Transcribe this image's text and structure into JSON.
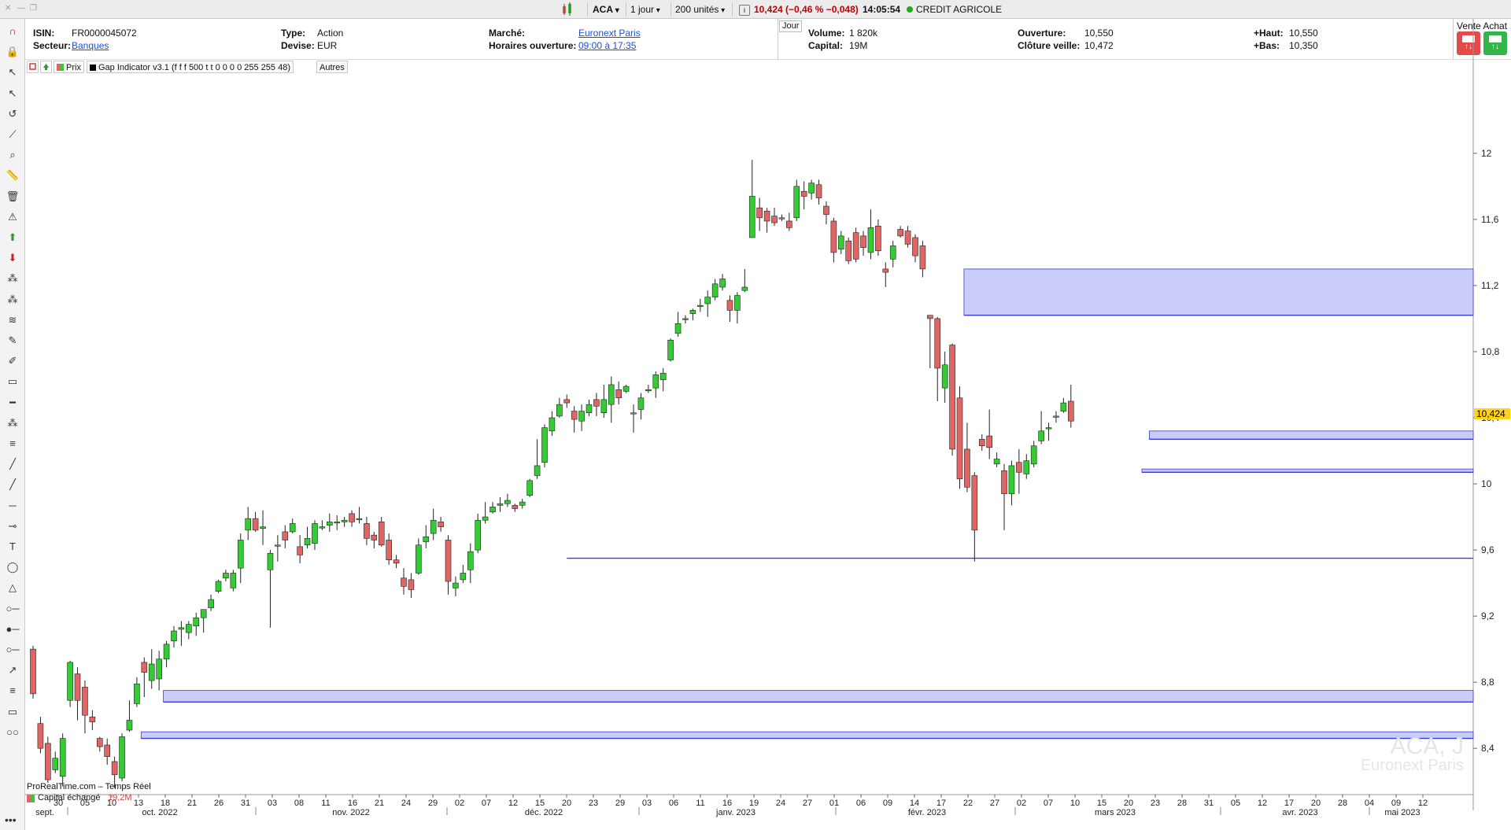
{
  "header": {
    "ticker": "ACA",
    "timeframe": "1 jour",
    "units": "200 unités",
    "info_icon": "i",
    "quote": "10,424 (−0,46 % −0,048)",
    "time": "14:05:54",
    "name": "CREDIT AGRICOLE",
    "colors": {
      "quote": "#c00000",
      "live_dot": "#22aa22"
    }
  },
  "info": {
    "isin_label": "ISIN:",
    "isin": "FR0000045072",
    "secteur_label": "Secteur:",
    "secteur": "Banques",
    "type_label": "Type:",
    "type": "Action",
    "devise_label": "Devise:",
    "devise": "EUR",
    "marche_label": "Marché:",
    "marche": "Euronext Paris",
    "horaires_label": "Horaires ouverture:",
    "horaires": "09:00 à 17:35",
    "period": "Jour",
    "volume_label": "Volume:",
    "volume": "1 820k",
    "capital_label": "Capital:",
    "capital": "19M",
    "ouverture_label": "Ouverture:",
    "ouverture": "10,550",
    "cloture_label": "Clôture veille:",
    "cloture": "10,472",
    "haut_label": "+Haut:",
    "haut": "10,550",
    "bas_label": "+Bas:",
    "bas": "10,350",
    "vente_achat": "Vente Achat",
    "colors": {
      "vente": "#e34a4a",
      "achat": "#33b54a"
    }
  },
  "legend": {
    "prix": "Prix",
    "indicator": "Gap Indicator v3.1 (f f f 500 t t 0 0 0 0 255 255 48)",
    "autres": "Autres"
  },
  "footer": {
    "source": "ProRealTime.com – Temps Réel",
    "capital_label": "Capital échangé",
    "capital_value": "19,2M",
    "watermark_ticker": "ACA, J",
    "watermark_market": "Euronext Paris"
  },
  "tools": [
    "magnet-icon",
    "lock-icon",
    "cursor-icon",
    "cursor-plus-icon",
    "undo-icon",
    "trend-icon",
    "zoom-icon",
    "ruler-icon",
    "trash-icon",
    "alert-icon",
    "buy-arrow-icon",
    "sell-arrow-icon",
    "fibonacci-icon",
    "wave-icon",
    "fib-retracement-icon",
    "pen-icon",
    "highlighter-icon",
    "rectangle-icon",
    "hline-icon",
    "pattern-icon",
    "channel-icon",
    "line-icon",
    "ray-icon",
    "horizontal-line-icon",
    "point-line-icon",
    "text-icon",
    "ellipse-icon",
    "triangle-icon",
    "segment-icon",
    "segment2-icon",
    "segment3-icon",
    "arrow-icon",
    "fib-fan-icon",
    "rect2-icon",
    "connect-icon"
  ],
  "chart_data": {
    "type": "candlestick",
    "y_ticks": [
      12,
      11.6,
      11.2,
      10.8,
      10.4,
      10,
      9.6,
      9.2,
      8.8,
      8.4
    ],
    "y_tick_labels": [
      "12",
      "11,6",
      "11,2",
      "10,8",
      "10,4",
      "10",
      "9,6",
      "9,2",
      "8,8",
      "8,4"
    ],
    "ylim": [
      8.12,
      12.48
    ],
    "last_price": 10.424,
    "last_price_label": "10,424",
    "x_day_labels": [
      "30",
      "05",
      "10",
      "13",
      "18",
      "21",
      "26",
      "31",
      "03",
      "08",
      "11",
      "16",
      "21",
      "24",
      "29",
      "02",
      "07",
      "12",
      "15",
      "20",
      "23",
      "29",
      "03",
      "06",
      "11",
      "16",
      "19",
      "24",
      "27",
      "01",
      "06",
      "09",
      "14",
      "17",
      "22",
      "27",
      "02",
      "07",
      "10",
      "15",
      "20",
      "23",
      "28",
      "31",
      "05",
      "12",
      "17",
      "20",
      "28",
      "04",
      "09",
      "12"
    ],
    "x_month_labels": [
      "sept.",
      "oct. 2022",
      "nov. 2022",
      "déc. 2022",
      "janv. 2023",
      "févr. 2023",
      "mars 2023",
      "avr. 2023",
      "mai 2023"
    ],
    "candles": [
      [
        9.0,
        8.73,
        9.02,
        8.7
      ],
      [
        8.55,
        8.4,
        8.59,
        8.37
      ],
      [
        8.43,
        8.21,
        8.47,
        8.19
      ],
      [
        8.27,
        8.34,
        8.38,
        8.25
      ],
      [
        8.23,
        8.46,
        8.49,
        8.17
      ],
      [
        8.69,
        8.92,
        8.93,
        8.65
      ],
      [
        8.85,
        8.69,
        8.89,
        8.57
      ],
      [
        8.77,
        8.6,
        8.81,
        8.49
      ],
      [
        8.59,
        8.56,
        8.63,
        8.51
      ],
      [
        8.46,
        8.41,
        8.47,
        8.38
      ],
      [
        8.42,
        8.35,
        8.46,
        8.3
      ],
      [
        8.32,
        8.24,
        8.35,
        8.16
      ],
      [
        8.22,
        8.47,
        8.49,
        8.2
      ],
      [
        8.51,
        8.57,
        8.69,
        8.5
      ],
      [
        8.67,
        8.79,
        8.83,
        8.65
      ],
      [
        8.92,
        8.86,
        8.95,
        8.71
      ],
      [
        8.81,
        8.91,
        9.0,
        8.76
      ],
      [
        8.82,
        8.94,
        8.99,
        8.75
      ],
      [
        8.94,
        9.03,
        9.05,
        8.89
      ],
      [
        9.05,
        9.11,
        9.14,
        9.01
      ],
      [
        9.12,
        9.13,
        9.17,
        9.02
      ],
      [
        9.1,
        9.15,
        9.17,
        9.06
      ],
      [
        9.14,
        9.19,
        9.22,
        9.08
      ],
      [
        9.19,
        9.24,
        9.24,
        9.1
      ],
      [
        9.25,
        9.3,
        9.33,
        9.23
      ],
      [
        9.35,
        9.41,
        9.42,
        9.34
      ],
      [
        9.43,
        9.46,
        9.48,
        9.41
      ],
      [
        9.37,
        9.46,
        9.48,
        9.35
      ],
      [
        9.49,
        9.66,
        9.7,
        9.4
      ],
      [
        9.72,
        9.79,
        9.86,
        9.66
      ],
      [
        9.79,
        9.72,
        9.83,
        9.71
      ],
      [
        9.73,
        9.74,
        9.84,
        9.63
      ],
      [
        9.48,
        9.58,
        9.6,
        9.13
      ],
      [
        9.63,
        9.63,
        9.69,
        9.53
      ],
      [
        9.71,
        9.66,
        9.75,
        9.61
      ],
      [
        9.71,
        9.76,
        9.79,
        9.7
      ],
      [
        9.62,
        9.57,
        9.69,
        9.52
      ],
      [
        9.63,
        9.67,
        9.74,
        9.61
      ],
      [
        9.64,
        9.76,
        9.78,
        9.6
      ],
      [
        9.74,
        9.74,
        9.78,
        9.72
      ],
      [
        9.75,
        9.77,
        9.82,
        9.71
      ],
      [
        9.77,
        9.77,
        9.81,
        9.72
      ],
      [
        9.77,
        9.78,
        9.8,
        9.74
      ],
      [
        9.82,
        9.77,
        9.84,
        9.74
      ],
      [
        9.79,
        9.79,
        9.86,
        9.76
      ],
      [
        9.76,
        9.67,
        9.8,
        9.63
      ],
      [
        9.69,
        9.66,
        9.71,
        9.61
      ],
      [
        9.77,
        9.63,
        9.8,
        9.62
      ],
      [
        9.66,
        9.54,
        9.7,
        9.51
      ],
      [
        9.54,
        9.52,
        9.57,
        9.49
      ],
      [
        9.43,
        9.38,
        9.49,
        9.33
      ],
      [
        9.42,
        9.36,
        9.46,
        9.31
      ],
      [
        9.46,
        9.63,
        9.67,
        9.45
      ],
      [
        9.65,
        9.68,
        9.75,
        9.61
      ],
      [
        9.7,
        9.78,
        9.85,
        9.66
      ],
      [
        9.77,
        9.74,
        9.8,
        9.71
      ],
      [
        9.66,
        9.41,
        9.69,
        9.33
      ],
      [
        9.37,
        9.4,
        9.44,
        9.32
      ],
      [
        9.42,
        9.46,
        9.51,
        9.4
      ],
      [
        9.48,
        9.59,
        9.64,
        9.4
      ],
      [
        9.6,
        9.78,
        9.82,
        9.58
      ],
      [
        9.78,
        9.8,
        9.89,
        9.76
      ],
      [
        9.83,
        9.86,
        9.89,
        9.82
      ],
      [
        9.87,
        9.88,
        9.92,
        9.83
      ],
      [
        9.88,
        9.9,
        9.94,
        9.86
      ],
      [
        9.87,
        9.85,
        9.88,
        9.83
      ],
      [
        9.87,
        9.89,
        9.91,
        9.85
      ],
      [
        9.93,
        10.02,
        10.03,
        9.92
      ],
      [
        10.05,
        10.11,
        10.27,
        10.03
      ],
      [
        10.13,
        10.34,
        10.36,
        10.1
      ],
      [
        10.32,
        10.4,
        10.44,
        10.29
      ],
      [
        10.41,
        10.48,
        10.52,
        10.4
      ],
      [
        10.51,
        10.49,
        10.54,
        10.46
      ],
      [
        10.44,
        10.39,
        10.47,
        10.31
      ],
      [
        10.38,
        10.44,
        10.48,
        10.32
      ],
      [
        10.43,
        10.48,
        10.51,
        10.41
      ],
      [
        10.51,
        10.47,
        10.55,
        10.41
      ],
      [
        10.43,
        10.51,
        10.6,
        10.4
      ],
      [
        10.48,
        10.6,
        10.65,
        10.37
      ],
      [
        10.57,
        10.52,
        10.62,
        10.48
      ],
      [
        10.56,
        10.59,
        10.6,
        10.55
      ],
      [
        10.43,
        10.43,
        10.48,
        10.31
      ],
      [
        10.45,
        10.52,
        10.55,
        10.39
      ],
      [
        10.57,
        10.57,
        10.6,
        10.55
      ],
      [
        10.58,
        10.66,
        10.68,
        10.52
      ],
      [
        10.63,
        10.67,
        10.7,
        10.56
      ],
      [
        10.75,
        10.87,
        10.88,
        10.74
      ],
      [
        10.91,
        10.97,
        11.04,
        10.89
      ],
      [
        11.0,
        11.0,
        11.02,
        10.97
      ],
      [
        11.03,
        11.05,
        11.06,
        10.99
      ],
      [
        11.08,
        11.08,
        11.12,
        11.04
      ],
      [
        11.09,
        11.13,
        11.17,
        11.01
      ],
      [
        11.13,
        11.21,
        11.24,
        11.11
      ],
      [
        11.19,
        11.24,
        11.27,
        11.17
      ],
      [
        11.11,
        11.05,
        11.14,
        10.98
      ],
      [
        11.05,
        11.14,
        11.16,
        10.97
      ],
      [
        11.17,
        11.19,
        11.3,
        11.16
      ],
      [
        11.49,
        11.74,
        11.96,
        11.49
      ],
      [
        11.67,
        11.61,
        11.73,
        11.53
      ],
      [
        11.65,
        11.59,
        11.67,
        11.52
      ],
      [
        11.62,
        11.58,
        11.67,
        11.56
      ],
      [
        11.61,
        11.61,
        11.63,
        11.59
      ],
      [
        11.59,
        11.55,
        11.64,
        11.53
      ],
      [
        11.61,
        11.8,
        11.84,
        11.59
      ],
      [
        11.77,
        11.74,
        11.83,
        11.66
      ],
      [
        11.76,
        11.82,
        11.84,
        11.72
      ],
      [
        11.81,
        11.73,
        11.84,
        11.69
      ],
      [
        11.68,
        11.63,
        11.71,
        11.57
      ],
      [
        11.59,
        11.4,
        11.61,
        11.34
      ],
      [
        11.42,
        11.5,
        11.53,
        11.39
      ],
      [
        11.47,
        11.35,
        11.49,
        11.33
      ],
      [
        11.52,
        11.36,
        11.55,
        11.34
      ],
      [
        11.5,
        11.43,
        11.53,
        11.38
      ],
      [
        11.4,
        11.55,
        11.66,
        11.36
      ],
      [
        11.56,
        11.41,
        11.6,
        11.38
      ],
      [
        11.3,
        11.28,
        11.34,
        11.19
      ],
      [
        11.36,
        11.44,
        11.47,
        11.31
      ],
      [
        11.54,
        11.5,
        11.56,
        11.49
      ],
      [
        11.53,
        11.45,
        11.56,
        11.43
      ],
      [
        11.49,
        11.38,
        11.51,
        11.34
      ],
      [
        11.44,
        11.3,
        11.47,
        11.25
      ],
      [
        11.02,
        11.0,
        11.0,
        10.7
      ],
      [
        11.0,
        10.7,
        11.01,
        10.5
      ],
      [
        10.58,
        10.72,
        10.8,
        10.49
      ],
      [
        10.84,
        10.21,
        10.85,
        10.17
      ],
      [
        10.52,
        10.03,
        10.59,
        9.97
      ],
      [
        10.21,
        9.98,
        10.37,
        9.95
      ],
      [
        10.05,
        9.72,
        10.07,
        9.53
      ],
      [
        10.27,
        10.23,
        10.3,
        10.2
      ],
      [
        10.29,
        10.22,
        10.45,
        10.15
      ],
      [
        10.12,
        10.15,
        10.19,
        10.1
      ],
      [
        10.08,
        9.94,
        10.12,
        9.72
      ],
      [
        9.94,
        10.11,
        10.14,
        9.87
      ],
      [
        10.13,
        10.07,
        10.21,
        9.94
      ],
      [
        10.06,
        10.14,
        10.18,
        10.03
      ],
      [
        10.12,
        10.23,
        10.26,
        10.1
      ],
      [
        10.26,
        10.32,
        10.44,
        10.24
      ],
      [
        10.34,
        10.34,
        10.37,
        10.26
      ],
      [
        10.41,
        10.41,
        10.44,
        10.37
      ],
      [
        10.44,
        10.49,
        10.52,
        10.43
      ],
      [
        10.5,
        10.38,
        10.6,
        10.34
      ]
    ],
    "gap_zones": [
      {
        "from_index": 126,
        "high": 11.3,
        "low": 11.02
      },
      {
        "from_index": 151,
        "high": 10.32,
        "low": 10.27
      },
      {
        "from_index": 150,
        "high": 10.09,
        "low": 10.07
      },
      {
        "from_index": 18,
        "high": 8.75,
        "low": 8.68
      },
      {
        "from_index": 15,
        "high": 8.5,
        "low": 8.46
      }
    ],
    "support_line": {
      "from_index": 72,
      "value": 9.55
    },
    "colors": {
      "up": "#33cc33",
      "down": "#e06666",
      "gap_fill": "#c9cbf8",
      "gap_stroke": "#3b3bd6",
      "last_price_bg": "#ffd11a"
    }
  }
}
